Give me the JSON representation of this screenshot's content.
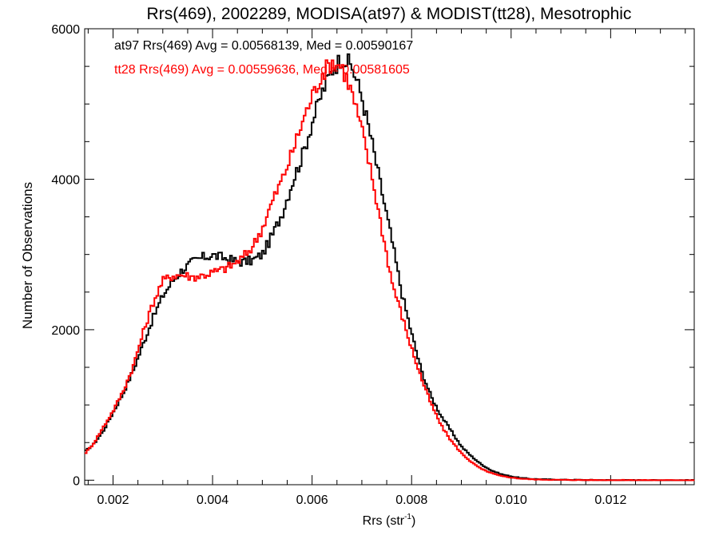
{
  "chart_data": {
    "type": "line",
    "title": "Rrs(469), 2002289, MODISA(at97) & MODIST(tt28), Mesotrophic",
    "xlabel": "Rrs (str",
    "xlabel_sup": "-1",
    "xlabel_close": ")",
    "ylabel": "Number of Observations",
    "xlim": [
      0.00143,
      0.01368
    ],
    "ylim": [
      -60,
      6000
    ],
    "x_ticks": [
      0.002,
      0.004,
      0.006,
      0.008,
      0.01,
      0.012
    ],
    "x_tick_labels": [
      "0.002",
      "0.004",
      "0.006",
      "0.008",
      "0.010",
      "0.012"
    ],
    "y_ticks": [
      0,
      2000,
      4000,
      6000
    ],
    "y_tick_labels": [
      "0",
      "2000",
      "4000",
      "6000"
    ],
    "step": "histogram",
    "series": [
      {
        "name": "at97",
        "color": "#000000",
        "annotation": "at97 Rrs(469) Avg = 0.00568139, Med = 0.00590167",
        "points": [
          [
            0.00143,
            380
          ],
          [
            0.0016,
            470
          ],
          [
            0.0018,
            650
          ],
          [
            0.002,
            900
          ],
          [
            0.0022,
            1150
          ],
          [
            0.0024,
            1450
          ],
          [
            0.0026,
            1800
          ],
          [
            0.0028,
            2150
          ],
          [
            0.003,
            2450
          ],
          [
            0.0032,
            2650
          ],
          [
            0.0034,
            2800
          ],
          [
            0.0036,
            2900
          ],
          [
            0.0038,
            2960
          ],
          [
            0.004,
            2990
          ],
          [
            0.0042,
            2960
          ],
          [
            0.0044,
            2920
          ],
          [
            0.0046,
            2900
          ],
          [
            0.0048,
            2920
          ],
          [
            0.005,
            3000
          ],
          [
            0.0052,
            3250
          ],
          [
            0.0054,
            3550
          ],
          [
            0.0056,
            3950
          ],
          [
            0.0058,
            4300
          ],
          [
            0.006,
            4750
          ],
          [
            0.0062,
            5150
          ],
          [
            0.0064,
            5450
          ],
          [
            0.0066,
            5620
          ],
          [
            0.0068,
            5500
          ],
          [
            0.007,
            5100
          ],
          [
            0.0072,
            4500
          ],
          [
            0.0074,
            3850
          ],
          [
            0.0076,
            3200
          ],
          [
            0.0078,
            2500
          ],
          [
            0.008,
            1950
          ],
          [
            0.0082,
            1450
          ],
          [
            0.0084,
            1100
          ],
          [
            0.0086,
            850
          ],
          [
            0.0088,
            650
          ],
          [
            0.009,
            450
          ],
          [
            0.0092,
            320
          ],
          [
            0.0094,
            210
          ],
          [
            0.0096,
            130
          ],
          [
            0.0098,
            80
          ],
          [
            0.01,
            50
          ],
          [
            0.0102,
            30
          ],
          [
            0.0104,
            18
          ],
          [
            0.0106,
            12
          ],
          [
            0.011,
            6
          ],
          [
            0.0115,
            3
          ],
          [
            0.012,
            1
          ],
          [
            0.013,
            0
          ],
          [
            0.01368,
            0
          ]
        ]
      },
      {
        "name": "tt28",
        "color": "#ff0000",
        "annotation": "tt28 Rrs(469) Avg = 0.00559636, Med = 0.00581605",
        "points": [
          [
            0.00143,
            350
          ],
          [
            0.0016,
            480
          ],
          [
            0.0018,
            700
          ],
          [
            0.002,
            920
          ],
          [
            0.0022,
            1180
          ],
          [
            0.0024,
            1500
          ],
          [
            0.0026,
            1950
          ],
          [
            0.0028,
            2350
          ],
          [
            0.003,
            2650
          ],
          [
            0.0032,
            2720
          ],
          [
            0.0034,
            2730
          ],
          [
            0.0036,
            2700
          ],
          [
            0.0038,
            2720
          ],
          [
            0.004,
            2760
          ],
          [
            0.0042,
            2800
          ],
          [
            0.0044,
            2860
          ],
          [
            0.0046,
            2950
          ],
          [
            0.0048,
            3100
          ],
          [
            0.005,
            3350
          ],
          [
            0.0052,
            3700
          ],
          [
            0.0054,
            4000
          ],
          [
            0.0056,
            4350
          ],
          [
            0.0058,
            4750
          ],
          [
            0.006,
            5100
          ],
          [
            0.0062,
            5400
          ],
          [
            0.0064,
            5560
          ],
          [
            0.0066,
            5500
          ],
          [
            0.0068,
            5150
          ],
          [
            0.007,
            4650
          ],
          [
            0.0072,
            4050
          ],
          [
            0.0074,
            3350
          ],
          [
            0.0076,
            2650
          ],
          [
            0.0078,
            2200
          ],
          [
            0.008,
            1750
          ],
          [
            0.0082,
            1350
          ],
          [
            0.0084,
            1000
          ],
          [
            0.0086,
            720
          ],
          [
            0.0088,
            520
          ],
          [
            0.009,
            360
          ],
          [
            0.0092,
            240
          ],
          [
            0.0094,
            150
          ],
          [
            0.0096,
            95
          ],
          [
            0.0098,
            55
          ],
          [
            0.01,
            35
          ],
          [
            0.0102,
            20
          ],
          [
            0.0104,
            12
          ],
          [
            0.0106,
            8
          ],
          [
            0.011,
            4
          ],
          [
            0.0115,
            2
          ],
          [
            0.012,
            1
          ],
          [
            0.013,
            0
          ],
          [
            0.01368,
            0
          ]
        ]
      }
    ]
  }
}
